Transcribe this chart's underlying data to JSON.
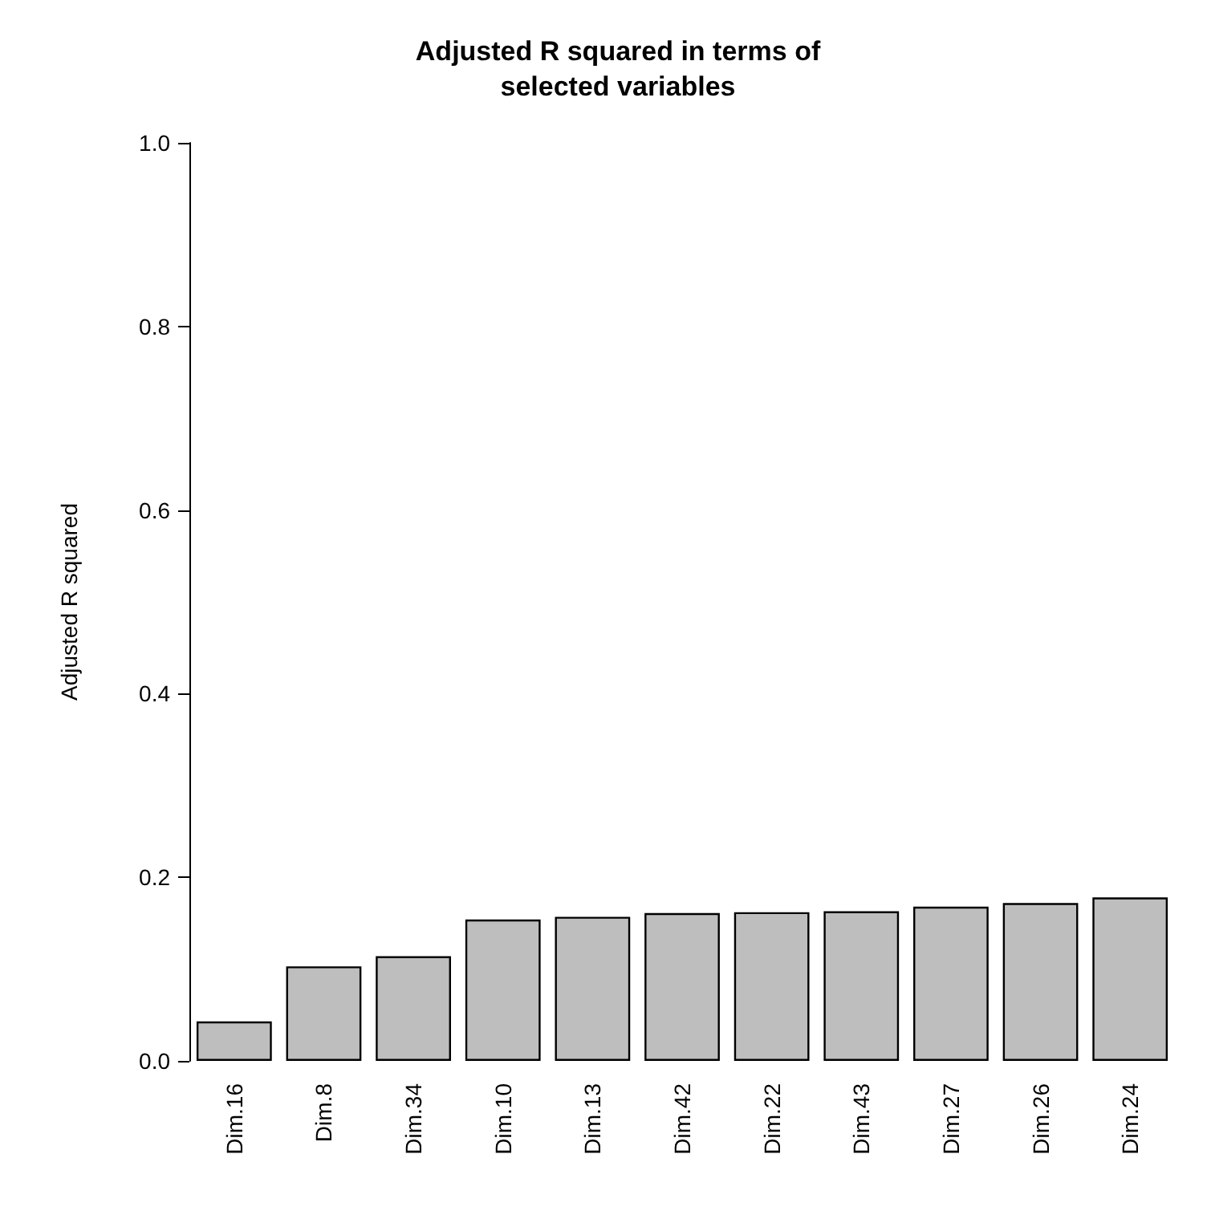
{
  "chart_data": {
    "type": "bar",
    "title": "Adjusted R squared in terms of\nselected variables",
    "ylabel": "Adjusted R squared",
    "categories": [
      "Dim.16",
      "Dim.8",
      "Dim.34",
      "Dim.10",
      "Dim.13",
      "Dim.42",
      "Dim.22",
      "Dim.43",
      "Dim.27",
      "Dim.26",
      "Dim.24"
    ],
    "values": [
      0.043,
      0.103,
      0.114,
      0.154,
      0.157,
      0.161,
      0.162,
      0.163,
      0.168,
      0.172,
      0.178
    ],
    "color": "#bebebe",
    "ylim": [
      0,
      1
    ],
    "yticks": [
      {
        "value": 0,
        "label": "0.0"
      },
      0.2,
      0.4,
      0.6,
      0.8,
      {
        "value": 1,
        "label": "1.0"
      }
    ],
    "grid": false
  }
}
